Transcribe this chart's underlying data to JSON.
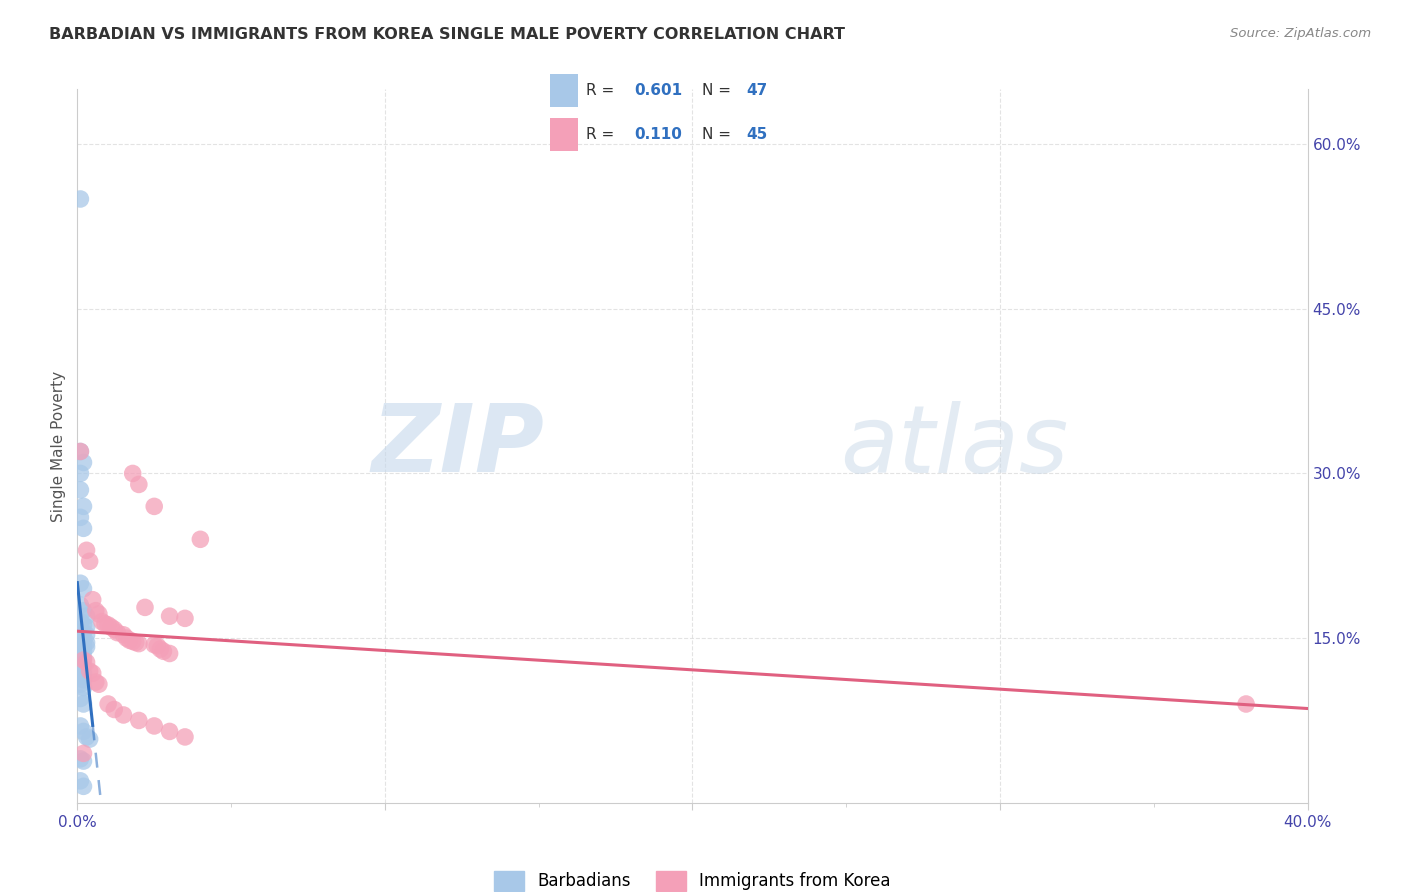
{
  "title": "BARBADIAN VS IMMIGRANTS FROM KOREA SINGLE MALE POVERTY CORRELATION CHART",
  "source": "Source: ZipAtlas.com",
  "ylabel": "Single Male Poverty",
  "x_min": 0.0,
  "x_max": 0.4,
  "y_min": 0.0,
  "y_max": 0.65,
  "x_ticks": [
    0.0,
    0.1,
    0.2,
    0.3,
    0.4
  ],
  "x_tick_labels": [
    "0.0%",
    "",
    "",
    "",
    "40.0%"
  ],
  "y_ticks": [
    0.15,
    0.3,
    0.45,
    0.6
  ],
  "y_tick_labels": [
    "15.0%",
    "30.0%",
    "45.0%",
    "60.0%"
  ],
  "blue_color": "#a8c8e8",
  "pink_color": "#f4a0b8",
  "blue_line_color": "#3070c0",
  "pink_line_color": "#e06080",
  "R_blue": 0.601,
  "N_blue": 47,
  "R_pink": 0.11,
  "N_pink": 45,
  "blue_scatter": [
    [
      0.001,
      0.55
    ],
    [
      0.001,
      0.32
    ],
    [
      0.002,
      0.31
    ],
    [
      0.001,
      0.3
    ],
    [
      0.001,
      0.285
    ],
    [
      0.002,
      0.27
    ],
    [
      0.001,
      0.26
    ],
    [
      0.002,
      0.25
    ],
    [
      0.001,
      0.2
    ],
    [
      0.002,
      0.195
    ],
    [
      0.001,
      0.18
    ],
    [
      0.002,
      0.175
    ],
    [
      0.003,
      0.17
    ],
    [
      0.001,
      0.165
    ],
    [
      0.002,
      0.162
    ],
    [
      0.003,
      0.16
    ],
    [
      0.001,
      0.158
    ],
    [
      0.002,
      0.155
    ],
    [
      0.003,
      0.153
    ],
    [
      0.001,
      0.15
    ],
    [
      0.002,
      0.148
    ],
    [
      0.003,
      0.146
    ],
    [
      0.001,
      0.145
    ],
    [
      0.002,
      0.143
    ],
    [
      0.003,
      0.142
    ],
    [
      0.001,
      0.14
    ],
    [
      0.002,
      0.138
    ],
    [
      0.001,
      0.135
    ],
    [
      0.002,
      0.132
    ],
    [
      0.001,
      0.128
    ],
    [
      0.002,
      0.125
    ],
    [
      0.001,
      0.12
    ],
    [
      0.002,
      0.118
    ],
    [
      0.001,
      0.115
    ],
    [
      0.002,
      0.112
    ],
    [
      0.001,
      0.108
    ],
    [
      0.002,
      0.105
    ],
    [
      0.001,
      0.095
    ],
    [
      0.002,
      0.09
    ],
    [
      0.001,
      0.07
    ],
    [
      0.002,
      0.065
    ],
    [
      0.003,
      0.06
    ],
    [
      0.004,
      0.058
    ],
    [
      0.001,
      0.04
    ],
    [
      0.002,
      0.038
    ],
    [
      0.001,
      0.02
    ],
    [
      0.002,
      0.015
    ]
  ],
  "pink_scatter": [
    [
      0.001,
      0.32
    ],
    [
      0.018,
      0.3
    ],
    [
      0.02,
      0.29
    ],
    [
      0.025,
      0.27
    ],
    [
      0.04,
      0.24
    ],
    [
      0.003,
      0.23
    ],
    [
      0.004,
      0.22
    ],
    [
      0.005,
      0.185
    ],
    [
      0.022,
      0.178
    ],
    [
      0.006,
      0.175
    ],
    [
      0.007,
      0.172
    ],
    [
      0.03,
      0.17
    ],
    [
      0.035,
      0.168
    ],
    [
      0.008,
      0.165
    ],
    [
      0.009,
      0.163
    ],
    [
      0.01,
      0.162
    ],
    [
      0.011,
      0.16
    ],
    [
      0.012,
      0.158
    ],
    [
      0.013,
      0.155
    ],
    [
      0.015,
      0.153
    ],
    [
      0.016,
      0.15
    ],
    [
      0.017,
      0.148
    ],
    [
      0.018,
      0.147
    ],
    [
      0.019,
      0.146
    ],
    [
      0.02,
      0.145
    ],
    [
      0.025,
      0.144
    ],
    [
      0.026,
      0.143
    ],
    [
      0.027,
      0.14
    ],
    [
      0.028,
      0.138
    ],
    [
      0.03,
      0.136
    ],
    [
      0.002,
      0.13
    ],
    [
      0.003,
      0.128
    ],
    [
      0.004,
      0.12
    ],
    [
      0.005,
      0.118
    ],
    [
      0.006,
      0.11
    ],
    [
      0.007,
      0.108
    ],
    [
      0.01,
      0.09
    ],
    [
      0.012,
      0.085
    ],
    [
      0.015,
      0.08
    ],
    [
      0.02,
      0.075
    ],
    [
      0.025,
      0.07
    ],
    [
      0.03,
      0.065
    ],
    [
      0.035,
      0.06
    ],
    [
      0.002,
      0.045
    ],
    [
      0.38,
      0.09
    ]
  ],
  "watermark_zip": "ZIP",
  "watermark_atlas": "atlas",
  "background_color": "#ffffff",
  "grid_color": "#d8d8d8",
  "legend_box_color": "#f5f5f5",
  "legend_R_label": "R = ",
  "legend_N_label": "  N = "
}
